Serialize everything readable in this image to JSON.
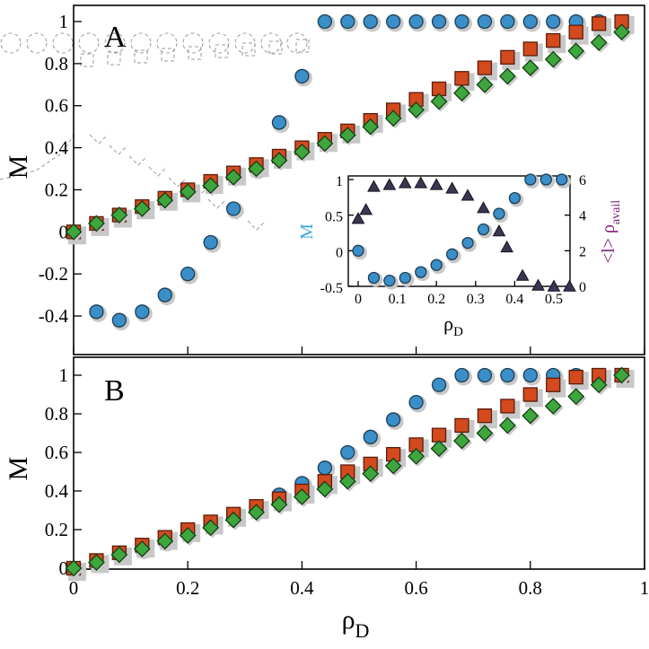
{
  "chart_data": [
    {
      "panel": "A",
      "type": "scatter",
      "panel_label": "A",
      "ylabel": "M",
      "xlabel": "",
      "xlim": [
        0,
        1
      ],
      "ylim": [
        -0.55,
        1.08
      ],
      "xticks": [
        0,
        0.2,
        0.4,
        0.6,
        0.8,
        1
      ],
      "xtick_labels": [
        "",
        "",
        "",
        "",
        "",
        ""
      ],
      "yticks": [
        -0.4,
        -0.2,
        0,
        0.2,
        0.4,
        0.6,
        0.8,
        1
      ],
      "ytick_labels": [
        "-0.4",
        "-0.2",
        "0",
        "0.2",
        "0.4",
        "0.6",
        "0.8",
        "1"
      ],
      "series": [
        {
          "name": "circles",
          "marker": "circle",
          "color": "#3a8fc8",
          "x": [
            0,
            0.04,
            0.08,
            0.12,
            0.16,
            0.2,
            0.24,
            0.28,
            0.32,
            0.36,
            0.4,
            0.44,
            0.48,
            0.52,
            0.56,
            0.6,
            0.64,
            0.68,
            0.72,
            0.76,
            0.8,
            0.84,
            0.88,
            0.92,
            0.96
          ],
          "y": [
            0,
            -0.38,
            -0.42,
            -0.38,
            -0.3,
            -0.2,
            -0.05,
            0.11,
            0.3,
            0.52,
            0.74,
            1,
            1,
            1,
            1,
            1,
            1,
            1,
            1,
            1,
            1,
            1,
            1,
            1,
            1
          ]
        },
        {
          "name": "squares",
          "marker": "square",
          "color": "#d24a1e",
          "x": [
            0,
            0.04,
            0.08,
            0.12,
            0.16,
            0.2,
            0.24,
            0.28,
            0.32,
            0.36,
            0.4,
            0.44,
            0.48,
            0.52,
            0.56,
            0.6,
            0.64,
            0.68,
            0.72,
            0.76,
            0.8,
            0.84,
            0.88,
            0.92,
            0.96
          ],
          "y": [
            0,
            0.04,
            0.08,
            0.12,
            0.16,
            0.2,
            0.24,
            0.28,
            0.32,
            0.36,
            0.4,
            0.44,
            0.48,
            0.53,
            0.58,
            0.63,
            0.68,
            0.73,
            0.78,
            0.83,
            0.87,
            0.91,
            0.95,
            0.99,
            1
          ]
        },
        {
          "name": "diamonds",
          "marker": "diamond",
          "color": "#3ea63c",
          "x": [
            0,
            0.04,
            0.08,
            0.12,
            0.16,
            0.2,
            0.24,
            0.28,
            0.32,
            0.36,
            0.4,
            0.44,
            0.48,
            0.52,
            0.56,
            0.6,
            0.64,
            0.68,
            0.72,
            0.76,
            0.8,
            0.84,
            0.88,
            0.92,
            0.96
          ],
          "y": [
            0,
            0.04,
            0.08,
            0.11,
            0.15,
            0.19,
            0.22,
            0.26,
            0.3,
            0.34,
            0.38,
            0.42,
            0.46,
            0.5,
            0.54,
            0.58,
            0.62,
            0.66,
            0.7,
            0.74,
            0.78,
            0.82,
            0.86,
            0.9,
            0.95
          ]
        }
      ]
    },
    {
      "panel": "A-inset",
      "type": "scatter",
      "xlabel": "ρD",
      "xlabel_main": "ρ",
      "xlabel_sub": "D",
      "ylabel_left": "M",
      "ylabel_right_main": "<l> ρ",
      "ylabel_right_sub": "avail",
      "xlim": [
        -0.01,
        0.55
      ],
      "ylim_left": [
        -0.5,
        1
      ],
      "ylim_right": [
        0,
        6
      ],
      "xticks": [
        0,
        0.1,
        0.2,
        0.3,
        0.4,
        0.5
      ],
      "xtick_labels": [
        "0",
        "0.1",
        "0.2",
        "0.3",
        "0.4",
        "0.5"
      ],
      "yticks_left": [
        -0.5,
        0,
        0.5,
        1
      ],
      "ytick_labels_left": [
        "-0.5",
        "0",
        "0.5",
        "1"
      ],
      "yticks_right": [
        0,
        2,
        4,
        6
      ],
      "ytick_labels_right": [
        "0",
        "2",
        "4",
        "6"
      ],
      "series": [
        {
          "name": "M (circles)",
          "marker": "circle",
          "axis": "left",
          "color": "#3a8fc8",
          "x": [
            0,
            0.04,
            0.08,
            0.12,
            0.16,
            0.2,
            0.24,
            0.28,
            0.32,
            0.36,
            0.4,
            0.44,
            0.48,
            0.52
          ],
          "y": [
            0,
            -0.38,
            -0.42,
            -0.38,
            -0.3,
            -0.2,
            -0.05,
            0.11,
            0.3,
            0.52,
            0.74,
            1,
            1,
            1
          ]
        },
        {
          "name": "<l> ρavail (triangles)",
          "marker": "triangle",
          "axis": "right",
          "color": "#3a3550",
          "x": [
            0,
            0.02,
            0.04,
            0.08,
            0.12,
            0.16,
            0.2,
            0.24,
            0.28,
            0.32,
            0.36,
            0.38,
            0.42,
            0.46,
            0.5,
            0.54
          ],
          "y": [
            3.8,
            4.3,
            5.6,
            5.7,
            5.8,
            5.8,
            5.7,
            5.5,
            5.1,
            4.4,
            3.1,
            2.2,
            0.6,
            0.05,
            0.0,
            0.0
          ]
        }
      ]
    },
    {
      "panel": "B",
      "type": "scatter",
      "panel_label": "B",
      "ylabel": "M",
      "xlabel": "ρD",
      "xlabel_main": "ρ",
      "xlabel_sub": "D",
      "xlim": [
        0,
        1
      ],
      "ylim": [
        -0.02,
        1.08
      ],
      "xticks": [
        0,
        0.2,
        0.4,
        0.6,
        0.8,
        1
      ],
      "xtick_labels": [
        "0",
        "0.2",
        "0.4",
        "0.6",
        "0.8",
        "1"
      ],
      "yticks": [
        0,
        0.2,
        0.4,
        0.6,
        0.8,
        1
      ],
      "ytick_labels": [
        "0",
        "0.2",
        "0.4",
        "0.6",
        "0.8",
        "1"
      ],
      "series": [
        {
          "name": "circles",
          "marker": "circle",
          "color": "#3a8fc8",
          "x": [
            0,
            0.04,
            0.08,
            0.12,
            0.16,
            0.2,
            0.24,
            0.28,
            0.32,
            0.36,
            0.4,
            0.44,
            0.48,
            0.52,
            0.56,
            0.6,
            0.64,
            0.68,
            0.72,
            0.76,
            0.8,
            0.84,
            0.88,
            0.92,
            0.96
          ],
          "y": [
            0,
            0.03,
            0.07,
            0.1,
            0.14,
            0.19,
            0.23,
            0.27,
            0.32,
            0.38,
            0.44,
            0.52,
            0.6,
            0.68,
            0.77,
            0.86,
            0.95,
            1,
            1,
            1,
            1,
            1,
            1,
            1,
            1
          ]
        },
        {
          "name": "squares",
          "marker": "square",
          "color": "#d24a1e",
          "x": [
            0,
            0.04,
            0.08,
            0.12,
            0.16,
            0.2,
            0.24,
            0.28,
            0.32,
            0.36,
            0.4,
            0.44,
            0.48,
            0.52,
            0.56,
            0.6,
            0.64,
            0.68,
            0.72,
            0.76,
            0.8,
            0.84,
            0.88,
            0.92,
            0.96
          ],
          "y": [
            0,
            0.04,
            0.08,
            0.12,
            0.16,
            0.2,
            0.24,
            0.28,
            0.32,
            0.36,
            0.4,
            0.45,
            0.5,
            0.54,
            0.59,
            0.64,
            0.69,
            0.74,
            0.79,
            0.84,
            0.9,
            0.95,
            0.99,
            1,
            1
          ]
        },
        {
          "name": "diamonds",
          "marker": "diamond",
          "color": "#3ea63c",
          "x": [
            0,
            0.04,
            0.08,
            0.12,
            0.16,
            0.2,
            0.24,
            0.28,
            0.32,
            0.36,
            0.4,
            0.44,
            0.48,
            0.52,
            0.56,
            0.6,
            0.64,
            0.68,
            0.72,
            0.76,
            0.8,
            0.84,
            0.88,
            0.92,
            0.96
          ],
          "y": [
            0,
            0.03,
            0.07,
            0.1,
            0.14,
            0.17,
            0.21,
            0.25,
            0.29,
            0.33,
            0.37,
            0.41,
            0.45,
            0.49,
            0.53,
            0.58,
            0.62,
            0.66,
            0.7,
            0.74,
            0.79,
            0.84,
            0.89,
            0.95,
            1
          ]
        }
      ]
    }
  ]
}
